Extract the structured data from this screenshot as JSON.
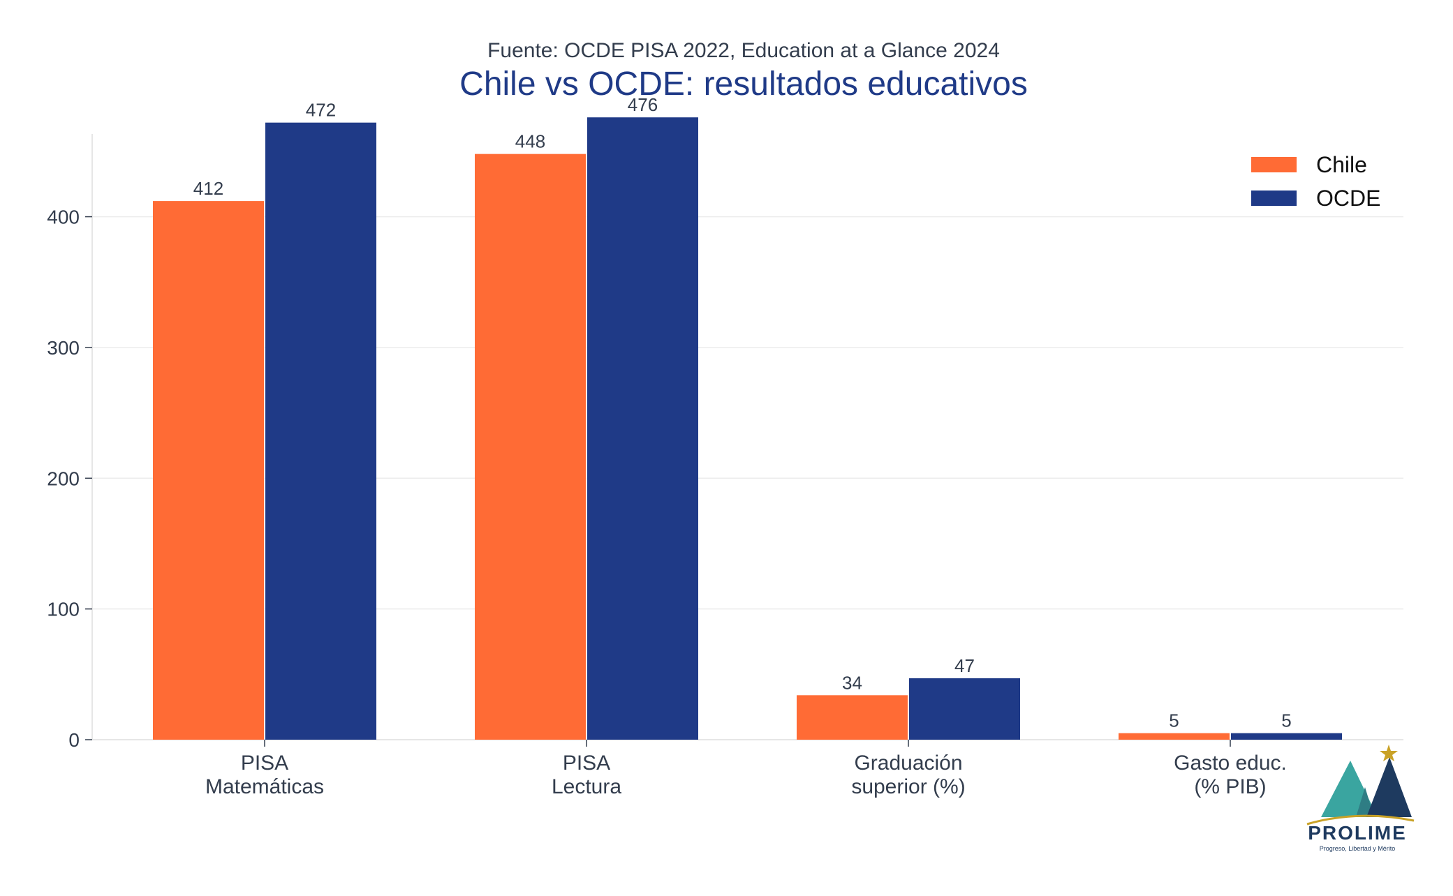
{
  "chart_data": {
    "type": "bar",
    "subtitle": "Fuente: OCDE PISA 2022, Education at a Glance 2024",
    "title": "Chile vs OCDE: resultados educativos",
    "categories": [
      [
        "PISA",
        "Matemáticas"
      ],
      [
        "PISA",
        "Lectura"
      ],
      [
        "Graduación",
        "superior (%)"
      ],
      [
        "Gasto educ.",
        "(% PIB)"
      ]
    ],
    "series": [
      {
        "name": "Chile",
        "color": "#ff6b35",
        "values": [
          412,
          448,
          34,
          5
        ]
      },
      {
        "name": "OCDE",
        "color": "#1f3a87",
        "values": [
          472,
          476,
          47,
          5
        ]
      }
    ],
    "data_labels": [
      [
        "412",
        "448",
        "34",
        "5"
      ],
      [
        "472",
        "476",
        "47",
        "5"
      ]
    ],
    "ylim": [
      0,
      500
    ],
    "yticks": [
      0,
      100,
      200,
      300,
      400
    ],
    "grid": true,
    "legend_position": "top-right",
    "xlabel": "",
    "ylabel": ""
  },
  "logo": {
    "name": "PROLIME",
    "tagline": "Progreso, Libertad y Mérito",
    "colors": {
      "teal": "#3aa5a0",
      "navy": "#1e3a5f",
      "gold": "#c9a227"
    }
  }
}
